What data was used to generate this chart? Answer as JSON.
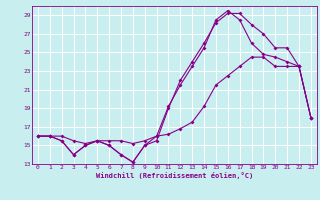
{
  "xlabel": "Windchill (Refroidissement éolien,°C)",
  "bg_color": "#c8eef0",
  "grid_color": "#ffffff",
  "line_color": "#880088",
  "xlim": [
    -0.5,
    23.5
  ],
  "ylim": [
    13,
    30
  ],
  "yticks": [
    13,
    15,
    17,
    19,
    21,
    23,
    25,
    27,
    29
  ],
  "xticks": [
    0,
    1,
    2,
    3,
    4,
    5,
    6,
    7,
    8,
    9,
    10,
    11,
    12,
    13,
    14,
    15,
    16,
    17,
    18,
    19,
    20,
    21,
    22,
    23
  ],
  "series1_x": [
    0,
    1,
    2,
    3,
    4,
    5,
    6,
    7,
    8,
    9,
    10,
    11,
    12,
    13,
    14,
    15,
    16,
    17,
    18,
    19,
    20,
    21,
    22,
    23
  ],
  "series1_y": [
    16.0,
    16.0,
    16.0,
    15.5,
    15.2,
    15.5,
    15.5,
    15.5,
    15.2,
    15.5,
    16.0,
    16.2,
    16.8,
    17.5,
    19.2,
    21.5,
    22.5,
    23.5,
    24.5,
    24.5,
    23.5,
    23.5,
    23.5,
    18.0
  ],
  "series2_x": [
    0,
    1,
    2,
    3,
    4,
    5,
    6,
    7,
    8,
    9,
    10,
    11,
    12,
    13,
    14,
    15,
    16,
    17,
    18,
    19,
    20,
    21,
    22,
    23
  ],
  "series2_y": [
    16.0,
    16.0,
    15.5,
    14.0,
    15.0,
    15.5,
    15.0,
    14.0,
    13.2,
    15.0,
    15.5,
    19.0,
    22.0,
    24.0,
    26.0,
    28.2,
    29.2,
    29.2,
    28.0,
    27.0,
    25.5,
    25.5,
    23.5,
    18.0
  ],
  "series3_x": [
    0,
    1,
    2,
    3,
    4,
    5,
    6,
    7,
    8,
    9,
    10,
    11,
    12,
    13,
    14,
    15,
    16,
    17,
    18,
    19,
    20,
    21,
    22,
    23
  ],
  "series3_y": [
    16.0,
    16.0,
    15.5,
    14.0,
    15.0,
    15.5,
    15.0,
    14.0,
    13.2,
    15.0,
    16.0,
    19.2,
    21.5,
    23.5,
    25.5,
    28.5,
    29.5,
    28.5,
    26.0,
    24.8,
    24.5,
    24.0,
    23.5,
    18.0
  ]
}
